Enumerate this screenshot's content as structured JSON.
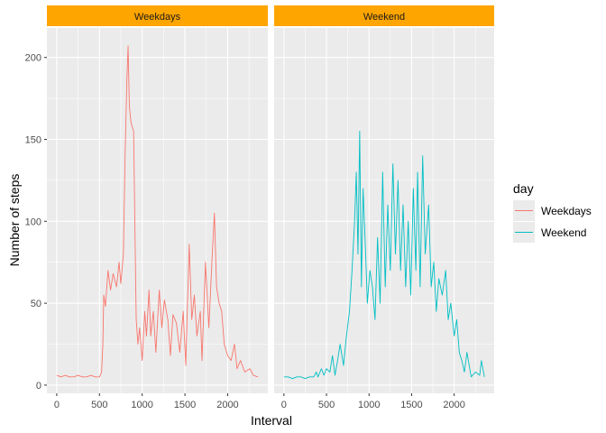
{
  "chart_data": {
    "type": "line",
    "facets": [
      "Weekdays",
      "Weekend"
    ],
    "xlabel": "Interval",
    "ylabel": "Number of steps",
    "xlim": [
      -115,
      2470
    ],
    "ylim": [
      -5,
      218
    ],
    "x_ticks": [
      0,
      500,
      1000,
      1500,
      2000
    ],
    "y_ticks": [
      0,
      50,
      100,
      150,
      200
    ],
    "grid": true,
    "legend": {
      "title": "day",
      "position": "right"
    },
    "strip_color": "#ffa500",
    "series": [
      {
        "name": "Weekdays",
        "facet": "Weekdays",
        "color": "#f8766d",
        "points": [
          [
            0,
            6
          ],
          [
            50,
            5
          ],
          [
            100,
            6
          ],
          [
            150,
            5
          ],
          [
            200,
            5
          ],
          [
            250,
            6
          ],
          [
            300,
            5
          ],
          [
            350,
            5
          ],
          [
            400,
            6
          ],
          [
            450,
            5
          ],
          [
            500,
            5
          ],
          [
            525,
            8
          ],
          [
            540,
            25
          ],
          [
            550,
            55
          ],
          [
            570,
            48
          ],
          [
            600,
            70
          ],
          [
            630,
            58
          ],
          [
            660,
            68
          ],
          [
            700,
            60
          ],
          [
            730,
            75
          ],
          [
            750,
            62
          ],
          [
            780,
            80
          ],
          [
            800,
            140
          ],
          [
            820,
            185
          ],
          [
            835,
            207
          ],
          [
            850,
            170
          ],
          [
            870,
            160
          ],
          [
            900,
            155
          ],
          [
            915,
            95
          ],
          [
            930,
            40
          ],
          [
            950,
            25
          ],
          [
            970,
            35
          ],
          [
            1000,
            15
          ],
          [
            1030,
            45
          ],
          [
            1050,
            30
          ],
          [
            1080,
            58
          ],
          [
            1100,
            30
          ],
          [
            1130,
            45
          ],
          [
            1160,
            20
          ],
          [
            1200,
            58
          ],
          [
            1230,
            35
          ],
          [
            1260,
            52
          ],
          [
            1300,
            40
          ],
          [
            1330,
            18
          ],
          [
            1360,
            43
          ],
          [
            1400,
            38
          ],
          [
            1440,
            20
          ],
          [
            1480,
            45
          ],
          [
            1510,
            12
          ],
          [
            1550,
            86
          ],
          [
            1580,
            40
          ],
          [
            1610,
            55
          ],
          [
            1640,
            30
          ],
          [
            1680,
            45
          ],
          [
            1700,
            15
          ],
          [
            1740,
            75
          ],
          [
            1780,
            35
          ],
          [
            1820,
            80
          ],
          [
            1845,
            105
          ],
          [
            1870,
            60
          ],
          [
            1900,
            50
          ],
          [
            1930,
            45
          ],
          [
            1960,
            25
          ],
          [
            2000,
            18
          ],
          [
            2040,
            15
          ],
          [
            2080,
            25
          ],
          [
            2110,
            10
          ],
          [
            2150,
            15
          ],
          [
            2200,
            8
          ],
          [
            2260,
            10
          ],
          [
            2300,
            6
          ],
          [
            2355,
            5
          ]
        ]
      },
      {
        "name": "Weekend",
        "facet": "Weekend",
        "color": "#00bfc4",
        "points": [
          [
            0,
            5
          ],
          [
            50,
            5
          ],
          [
            100,
            4
          ],
          [
            150,
            5
          ],
          [
            200,
            5
          ],
          [
            250,
            4
          ],
          [
            300,
            5
          ],
          [
            350,
            5
          ],
          [
            380,
            8
          ],
          [
            400,
            5
          ],
          [
            440,
            10
          ],
          [
            470,
            6
          ],
          [
            500,
            10
          ],
          [
            540,
            8
          ],
          [
            570,
            18
          ],
          [
            600,
            6
          ],
          [
            630,
            15
          ],
          [
            660,
            25
          ],
          [
            700,
            12
          ],
          [
            730,
            28
          ],
          [
            770,
            45
          ],
          [
            800,
            70
          ],
          [
            830,
            100
          ],
          [
            850,
            130
          ],
          [
            870,
            80
          ],
          [
            890,
            155
          ],
          [
            910,
            60
          ],
          [
            930,
            120
          ],
          [
            960,
            80
          ],
          [
            980,
            50
          ],
          [
            1010,
            70
          ],
          [
            1040,
            60
          ],
          [
            1070,
            40
          ],
          [
            1100,
            90
          ],
          [
            1130,
            50
          ],
          [
            1160,
            130
          ],
          [
            1190,
            60
          ],
          [
            1220,
            110
          ],
          [
            1250,
            70
          ],
          [
            1280,
            135
          ],
          [
            1310,
            80
          ],
          [
            1340,
            125
          ],
          [
            1370,
            70
          ],
          [
            1400,
            110
          ],
          [
            1430,
            60
          ],
          [
            1460,
            100
          ],
          [
            1490,
            55
          ],
          [
            1520,
            120
          ],
          [
            1550,
            70
          ],
          [
            1570,
            130
          ],
          [
            1600,
            60
          ],
          [
            1630,
            140
          ],
          [
            1660,
            80
          ],
          [
            1700,
            110
          ],
          [
            1730,
            60
          ],
          [
            1760,
            75
          ],
          [
            1790,
            45
          ],
          [
            1820,
            65
          ],
          [
            1860,
            55
          ],
          [
            1900,
            70
          ],
          [
            1930,
            40
          ],
          [
            1960,
            50
          ],
          [
            2000,
            30
          ],
          [
            2030,
            40
          ],
          [
            2060,
            20
          ],
          [
            2090,
            15
          ],
          [
            2120,
            8
          ],
          [
            2150,
            20
          ],
          [
            2200,
            5
          ],
          [
            2250,
            8
          ],
          [
            2300,
            6
          ],
          [
            2320,
            15
          ],
          [
            2355,
            5
          ]
        ]
      }
    ]
  }
}
